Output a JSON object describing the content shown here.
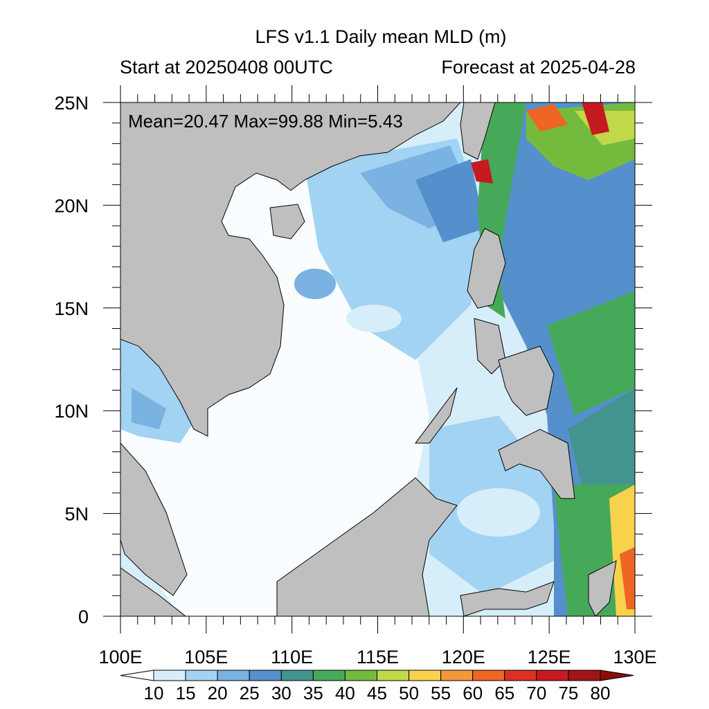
{
  "title": "LFS v1.1 Daily mean MLD (m)",
  "subtitle_left": "Start at 20250408 00UTC",
  "subtitle_right": "Forecast at 2025-04-28",
  "stats": "Mean=20.47  Max=99.88  Min=5.43",
  "axes": {
    "lat_labels": [
      "25N",
      "20N",
      "15N",
      "10N",
      "5N",
      "0"
    ],
    "lon_labels": [
      "100E",
      "105E",
      "110E",
      "115E",
      "120E",
      "125E",
      "130E"
    ],
    "lon_range": [
      100,
      130
    ],
    "lat_range": [
      0,
      25
    ]
  },
  "colorbar": {
    "labels": [
      "10",
      "15",
      "20",
      "25",
      "30",
      "35",
      "40",
      "45",
      "50",
      "55",
      "60",
      "65",
      "70",
      "75",
      "80"
    ],
    "colors": [
      "#ffffff",
      "#d6eefa",
      "#a3d3f3",
      "#7ab2e1",
      "#5590cc",
      "#43948f",
      "#46a95a",
      "#74bb3d",
      "#c0d849",
      "#f8d24c",
      "#f3983a",
      "#ef6524",
      "#dc3122",
      "#c61a21",
      "#a01515",
      "#8b0d0d"
    ]
  },
  "colors": {
    "land": "#bfbfbf",
    "ocean_low": "#ffffff"
  }
}
